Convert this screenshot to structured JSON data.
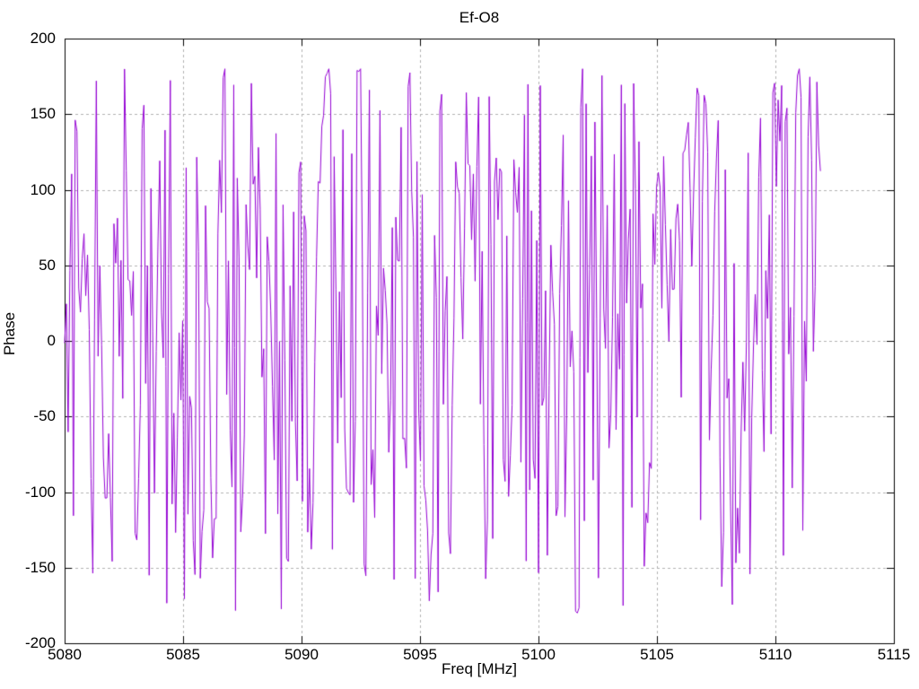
{
  "chart_data": {
    "type": "line",
    "title": "Ef-O8",
    "xlabel": "Freq [MHz]",
    "ylabel": "Phase",
    "xlim": [
      5080,
      5115
    ],
    "ylim": [
      -200,
      200
    ],
    "xticks": [
      5080,
      5085,
      5090,
      5095,
      5100,
      5105,
      5110,
      5115
    ],
    "yticks": [
      -200,
      -150,
      -100,
      -50,
      0,
      50,
      100,
      150,
      200
    ],
    "grid": true,
    "legend": "none",
    "background": "#ffffff",
    "border_color": "#000000",
    "grid_color": "#b0b0b0",
    "series": [
      {
        "name": "Ef-O8 phase",
        "color": "#9400d3",
        "line_width": 1,
        "x_start": 5080.0,
        "x_end": 5111.9,
        "n_points": 430,
        "y_min": -180,
        "y_max": 180,
        "distribution": "uniformly-wrapped phase noise between -180 and 180 deg",
        "seed": 20240515,
        "local_step_probability": 0.22,
        "local_step_range": 50
      }
    ]
  }
}
